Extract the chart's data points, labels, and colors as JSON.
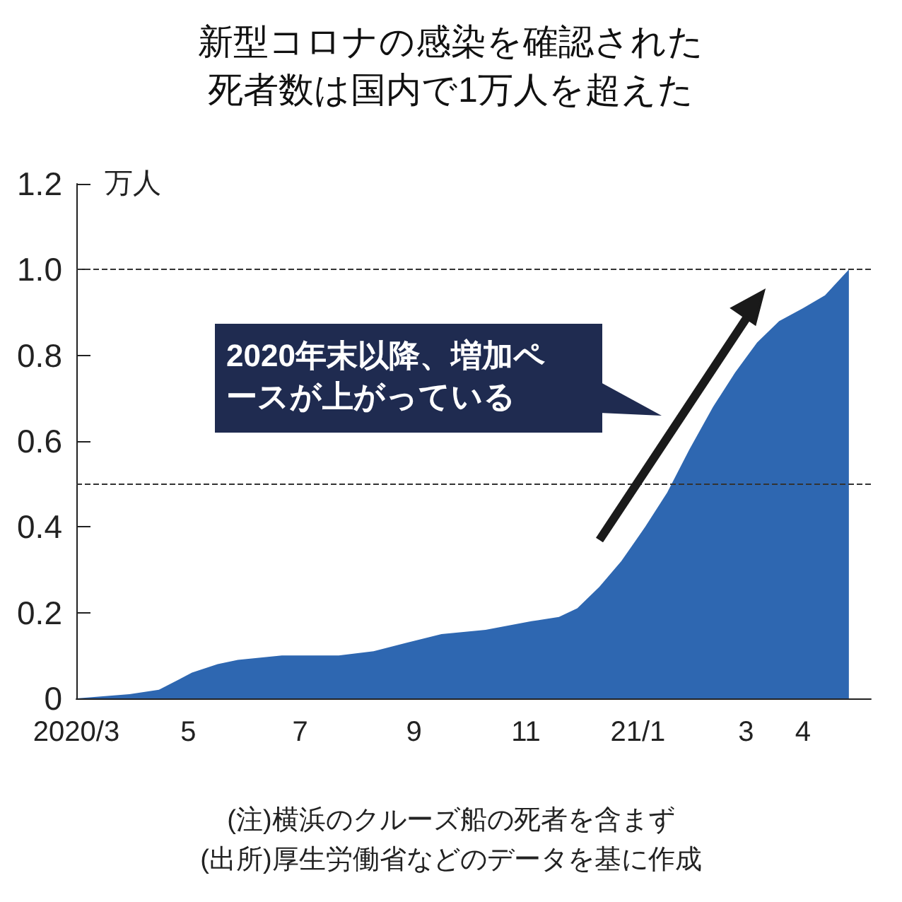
{
  "chart_data": {
    "type": "area",
    "title": "新型コロナの感染を確認された死者数は国内で1万人を超えた",
    "ylabel": "万人",
    "x": [
      "2020-03-01",
      "2020-03-30",
      "2020-04-15",
      "2020-05-03",
      "2020-05-17",
      "2020-05-28",
      "2020-06-21",
      "2020-07-22",
      "2020-08-10",
      "2020-08-28",
      "2020-09-16",
      "2020-10-10",
      "2020-11-04",
      "2020-11-19",
      "2020-11-29",
      "2020-12-11",
      "2020-12-23",
      "2021-01-05",
      "2021-01-17",
      "2021-01-29",
      "2021-02-11",
      "2021-02-23",
      "2021-03-07",
      "2021-03-19",
      "2021-04-01",
      "2021-04-13",
      "2021-04-26"
    ],
    "values": [
      0,
      0.01,
      0.02,
      0.06,
      0.08,
      0.09,
      0.1,
      0.1,
      0.11,
      0.13,
      0.15,
      0.16,
      0.18,
      0.19,
      0.21,
      0.26,
      0.32,
      0.4,
      0.48,
      0.58,
      0.68,
      0.76,
      0.83,
      0.88,
      0.91,
      0.94,
      1.0
    ],
    "color": "#2e67b1",
    "xlim": [
      "2020-03-01",
      "2021-05-08"
    ],
    "xticks": [
      {
        "value": "2020-03-01",
        "label": "2020/3"
      },
      {
        "value": "2020-05-01",
        "label": "5"
      },
      {
        "value": "2020-07-01",
        "label": "7"
      },
      {
        "value": "2020-09-01",
        "label": "9"
      },
      {
        "value": "2020-11-01",
        "label": "11"
      },
      {
        "value": "2021-01-01",
        "label": "21/1"
      },
      {
        "value": "2021-03-01",
        "label": "3"
      },
      {
        "value": "2021-04-01",
        "label": "4"
      }
    ],
    "ylim": [
      0,
      1.2
    ],
    "yticks": [
      0,
      0.2,
      0.4,
      0.6,
      0.8,
      {
        "value": 1,
        "label": "1.0"
      },
      1.2
    ],
    "grid": false,
    "ref_lines": [
      {
        "axis": "y",
        "value": 1,
        "line_style": "dashed",
        "color": "#333333"
      },
      {
        "axis": "y",
        "value": 0.5,
        "line_style": "dashed",
        "color": "#333333"
      }
    ],
    "annotations": [
      "2020年末以降、増加ペースが上がっている",
      "(注)横浜のクルーズ船の死者を含まず",
      "(出所)厚生労働省などのデータを基に作成"
    ]
  }
}
